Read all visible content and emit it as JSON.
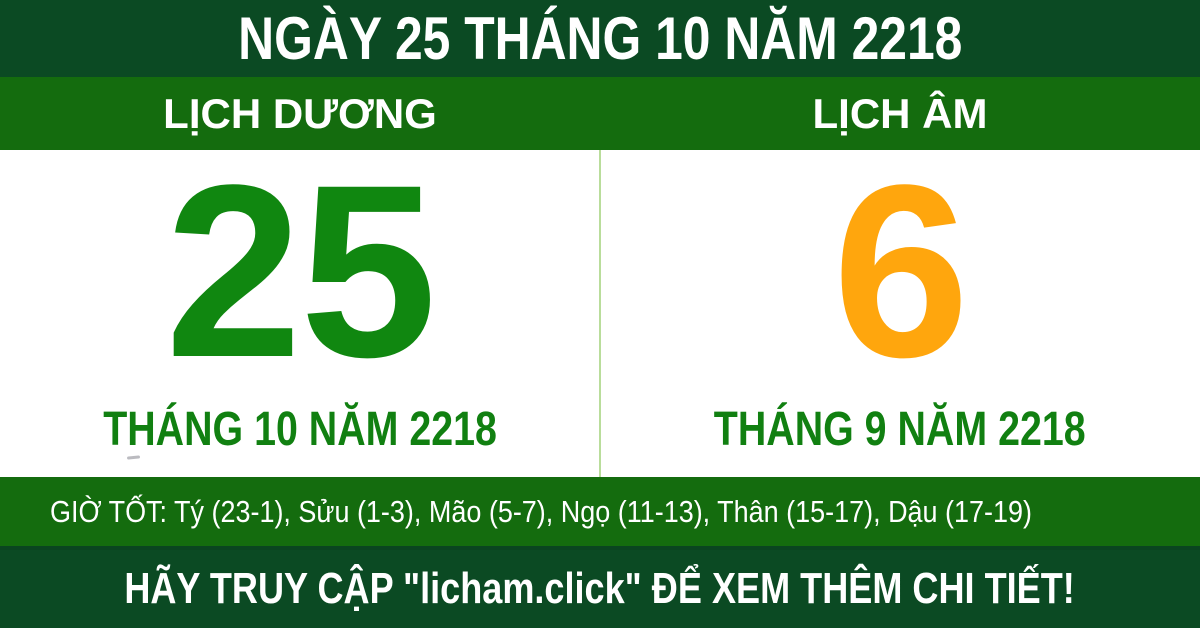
{
  "header": {
    "title": "NGÀY 25 THÁNG 10 NĂM 2218"
  },
  "columns": {
    "solar": {
      "label": "LỊCH DƯƠNG",
      "day": "25",
      "month_year": "THÁNG 10 NĂM 2218"
    },
    "lunar": {
      "label": "LỊCH ÂM",
      "day": "6",
      "month_year": "THÁNG 9 NĂM 2218"
    }
  },
  "good_hours": {
    "text": "GIỜ TỐT: Tý (23-1), Sửu (1-3), Mão (5-7), Ngọ (11-13), Thân (15-17), Dậu (17-19)"
  },
  "footer": {
    "text": "HÃY TRUY CẬP \"licham.click\" ĐỂ XEM THÊM CHI TIẾT!"
  },
  "colors": {
    "dark_green": "#0B4A23",
    "bright_green": "#146C0E",
    "day_green": "#108710",
    "month_green": "#118011",
    "lunar_orange": "#FFA60D",
    "divider_green": "#B9DD9B",
    "text_white": "#FFFFFF"
  }
}
